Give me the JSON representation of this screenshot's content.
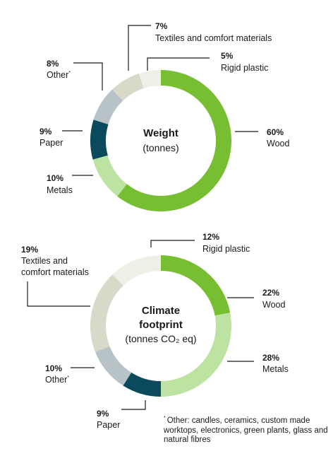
{
  "chart_data": [
    {
      "type": "pie",
      "title": "Weight",
      "subtitle": "(tonnes)",
      "slices": [
        {
          "label": "Wood",
          "value": 60,
          "pct_label": "60%",
          "color": "#78be33"
        },
        {
          "label": "Metals",
          "value": 10,
          "pct_label": "10%",
          "color": "#bde3a2"
        },
        {
          "label": "Paper",
          "value": 9,
          "pct_label": "9%",
          "color": "#0b4a5c"
        },
        {
          "label": "Other",
          "value": 8,
          "pct_label": "8%",
          "color": "#b7c3c6",
          "note": "*"
        },
        {
          "label": "Textiles and comfort materials",
          "value": 7,
          "pct_label": "7%",
          "color": "#d9d9ca"
        },
        {
          "label": "Rigid plastic",
          "value": 5,
          "pct_label": "5%",
          "color": "#efefe8"
        }
      ]
    },
    {
      "type": "pie",
      "title": "Climate footprint",
      "title_lines": [
        "Climate",
        "footprint"
      ],
      "subtitle": "(tonnes CO₂ eq)",
      "slices": [
        {
          "label": "Wood",
          "value": 22,
          "pct_label": "22%",
          "color": "#78be33"
        },
        {
          "label": "Metals",
          "value": 28,
          "pct_label": "28%",
          "color": "#bde3a2"
        },
        {
          "label": "Paper",
          "value": 9,
          "pct_label": "9%",
          "color": "#0b4a5c"
        },
        {
          "label": "Other",
          "value": 10,
          "pct_label": "10%",
          "color": "#b7c3c6",
          "note": "*"
        },
        {
          "label": "Textiles and comfort materials",
          "label_lines": [
            "Textiles and",
            "comfort materials"
          ],
          "value": 19,
          "pct_label": "19%",
          "color": "#d9d9ca"
        },
        {
          "label": "Rigid plastic",
          "value": 12,
          "pct_label": "12%",
          "color": "#efefe8"
        }
      ]
    }
  ],
  "footnote": {
    "marker": "*",
    "text": "Other: candles, ceramics, custom made worktops, electronics, green plants, glass and natural fibres"
  }
}
